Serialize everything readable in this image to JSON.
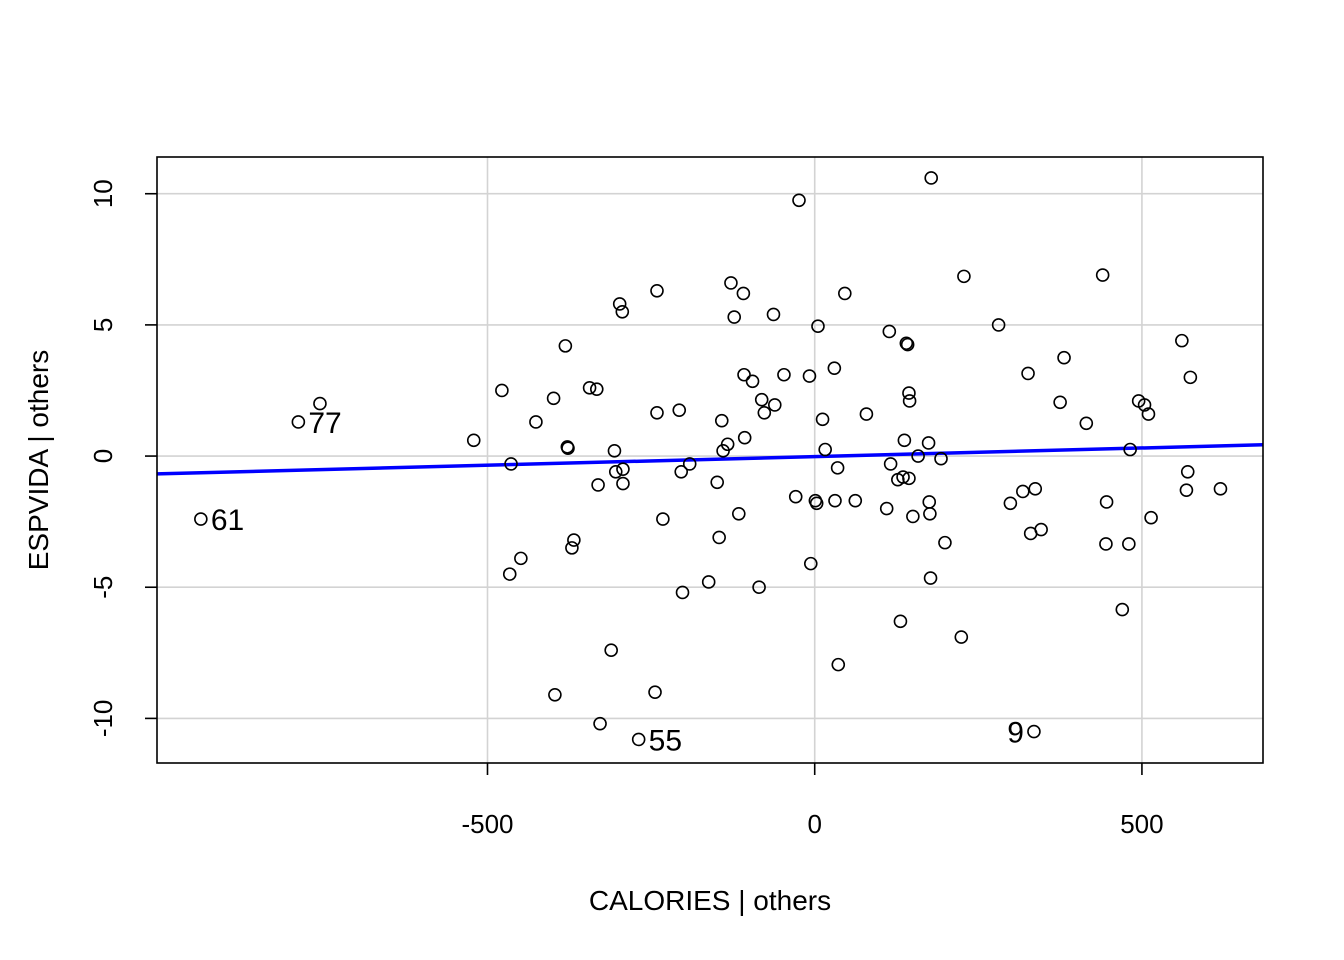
{
  "chart_data": {
    "type": "scatter",
    "title": "",
    "xlabel": "CALORIES | others",
    "ylabel": "ESPVIDA  | others",
    "xlim": [
      -1005,
      685
    ],
    "ylim": [
      -11.7,
      11.4
    ],
    "xticks": [
      -500,
      0,
      500
    ],
    "yticks": [
      -10,
      -5,
      0,
      5,
      10
    ],
    "xtick_labels": [
      "-500",
      "0",
      "500"
    ],
    "ytick_labels": [
      "-10",
      "-5",
      "0",
      "5",
      "10"
    ],
    "grid": true,
    "grid_color": "#d3d3d3",
    "point_color": "#000000",
    "fit_line": {
      "color": "#0000ff",
      "x": [
        -1005,
        685
      ],
      "y": [
        -0.68,
        0.43
      ]
    },
    "labeled_points": [
      {
        "label": "61",
        "x": -938,
        "y": -2.4
      },
      {
        "label": "77",
        "x": -789,
        "y": 1.3
      },
      {
        "label": "55",
        "x": -269,
        "y": -10.8
      },
      {
        "label": "9",
        "x": 335,
        "y": -10.5
      }
    ],
    "points": [
      [
        -938,
        -2.4
      ],
      [
        -789,
        1.3
      ],
      [
        -756,
        2.0
      ],
      [
        -521,
        0.6
      ],
      [
        -478,
        2.5
      ],
      [
        -466,
        -4.5
      ],
      [
        -464,
        -0.3
      ],
      [
        -449,
        -3.9
      ],
      [
        -426,
        1.3
      ],
      [
        -399,
        2.2
      ],
      [
        -397,
        -9.1
      ],
      [
        -381,
        4.2
      ],
      [
        -378,
        0.35
      ],
      [
        -377,
        0.3
      ],
      [
        -371,
        -3.5
      ],
      [
        -368,
        -3.2
      ],
      [
        -344,
        2.6
      ],
      [
        -333,
        2.55
      ],
      [
        -331,
        -1.1
      ],
      [
        -328,
        -10.2
      ],
      [
        -311,
        -7.4
      ],
      [
        -306,
        0.2
      ],
      [
        -304,
        -0.6
      ],
      [
        -298,
        5.8
      ],
      [
        -294,
        5.5
      ],
      [
        -293,
        -0.5
      ],
      [
        -293,
        -1.05
      ],
      [
        -269,
        -10.8
      ],
      [
        -244,
        -9.0
      ],
      [
        -241,
        6.3
      ],
      [
        -241,
        1.65
      ],
      [
        -232,
        -2.4
      ],
      [
        -207,
        1.75
      ],
      [
        -204,
        -0.6
      ],
      [
        -202,
        -5.2
      ],
      [
        -191,
        -0.3
      ],
      [
        -162,
        -4.8
      ],
      [
        -149,
        -1.0
      ],
      [
        -146,
        -3.1
      ],
      [
        -142,
        1.35
      ],
      [
        -140,
        0.2
      ],
      [
        -133,
        0.45
      ],
      [
        -128,
        6.6
      ],
      [
        -123,
        5.3
      ],
      [
        -116,
        -2.2
      ],
      [
        -109,
        6.2
      ],
      [
        -108,
        3.1
      ],
      [
        -107,
        0.7
      ],
      [
        -95,
        2.85
      ],
      [
        -85,
        -5.0
      ],
      [
        -81,
        2.15
      ],
      [
        -77,
        1.65
      ],
      [
        -63,
        5.4
      ],
      [
        -61,
        1.95
      ],
      [
        -47,
        3.1
      ],
      [
        -29,
        -1.55
      ],
      [
        -24,
        9.75
      ],
      [
        -8,
        3.05
      ],
      [
        -6,
        -4.1
      ],
      [
        1,
        -1.7
      ],
      [
        3,
        -1.8
      ],
      [
        5,
        4.95
      ],
      [
        12,
        1.4
      ],
      [
        16,
        0.25
      ],
      [
        30,
        3.35
      ],
      [
        31,
        -1.7
      ],
      [
        35,
        -0.45
      ],
      [
        36,
        -7.95
      ],
      [
        46,
        6.2
      ],
      [
        62,
        -1.7
      ],
      [
        79,
        1.6
      ],
      [
        110,
        -2.0
      ],
      [
        114,
        4.75
      ],
      [
        116,
        -0.3
      ],
      [
        127,
        -0.9
      ],
      [
        131,
        -6.3
      ],
      [
        135,
        -0.8
      ],
      [
        137,
        0.6
      ],
      [
        140,
        4.3
      ],
      [
        142,
        4.25
      ],
      [
        144,
        -0.85
      ],
      [
        144,
        2.4
      ],
      [
        145,
        2.1
      ],
      [
        150,
        -2.3
      ],
      [
        158,
        0.0
      ],
      [
        174,
        0.5
      ],
      [
        175,
        -1.75
      ],
      [
        176,
        -2.2
      ],
      [
        177,
        -4.65
      ],
      [
        178,
        10.6
      ],
      [
        193,
        -0.1
      ],
      [
        199,
        -3.3
      ],
      [
        224,
        -6.9
      ],
      [
        228,
        6.85
      ],
      [
        281,
        5.0
      ],
      [
        299,
        -1.8
      ],
      [
        318,
        -1.35
      ],
      [
        326,
        3.15
      ],
      [
        330,
        -2.95
      ],
      [
        335,
        -10.5
      ],
      [
        337,
        -1.25
      ],
      [
        346,
        -2.8
      ],
      [
        375,
        2.05
      ],
      [
        381,
        3.75
      ],
      [
        415,
        1.25
      ],
      [
        440,
        6.9
      ],
      [
        445,
        -3.35
      ],
      [
        446,
        -1.75
      ],
      [
        470,
        -5.85
      ],
      [
        480,
        -3.35
      ],
      [
        482,
        0.25
      ],
      [
        495,
        2.1
      ],
      [
        504,
        1.95
      ],
      [
        510,
        1.6
      ],
      [
        514,
        -2.35
      ],
      [
        561,
        4.4
      ],
      [
        568,
        -1.3
      ],
      [
        570,
        -0.6
      ],
      [
        574,
        3.0
      ],
      [
        620,
        -1.25
      ]
    ]
  }
}
